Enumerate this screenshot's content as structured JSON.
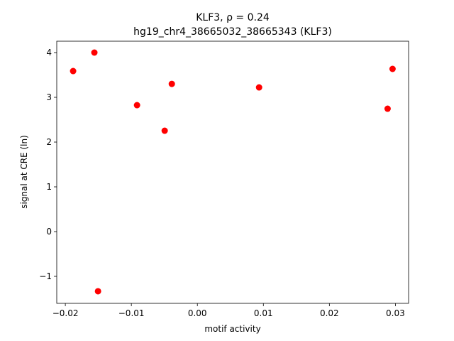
{
  "chart_data": {
    "type": "scatter",
    "title": "KLF3, ρ = 0.24",
    "subtitle": "hg19_chr4_38665032_38665343 (KLF3)",
    "x_label": "motif activity",
    "y_label": "signal at CRE (ln)",
    "color": "#ff0000",
    "x": [
      -0.01882,
      -0.0156,
      -0.01505,
      -0.00914,
      -0.00387,
      -0.00495,
      0.00935,
      0.02882,
      0.02957
    ],
    "values": [
      3.587,
      4.0,
      -1.333,
      2.825,
      3.3,
      2.254,
      3.222,
      2.746,
      3.635
    ],
    "xlim": [
      -0.0213,
      0.032
    ],
    "ylim": [
      -1.603,
      4.254
    ],
    "xticks": [
      {
        "value": -0.02,
        "label": "−0.02"
      },
      {
        "value": -0.01,
        "label": "−0.01"
      },
      {
        "value": 0,
        "label": "0.00"
      },
      {
        "value": 0.01,
        "label": "0.01"
      },
      {
        "value": 0.02,
        "label": "0.02"
      },
      {
        "value": 0.03,
        "label": "0.03"
      }
    ],
    "yticks": [
      {
        "value": -1,
        "label": "−1"
      },
      0,
      1,
      2,
      3,
      4
    ]
  }
}
